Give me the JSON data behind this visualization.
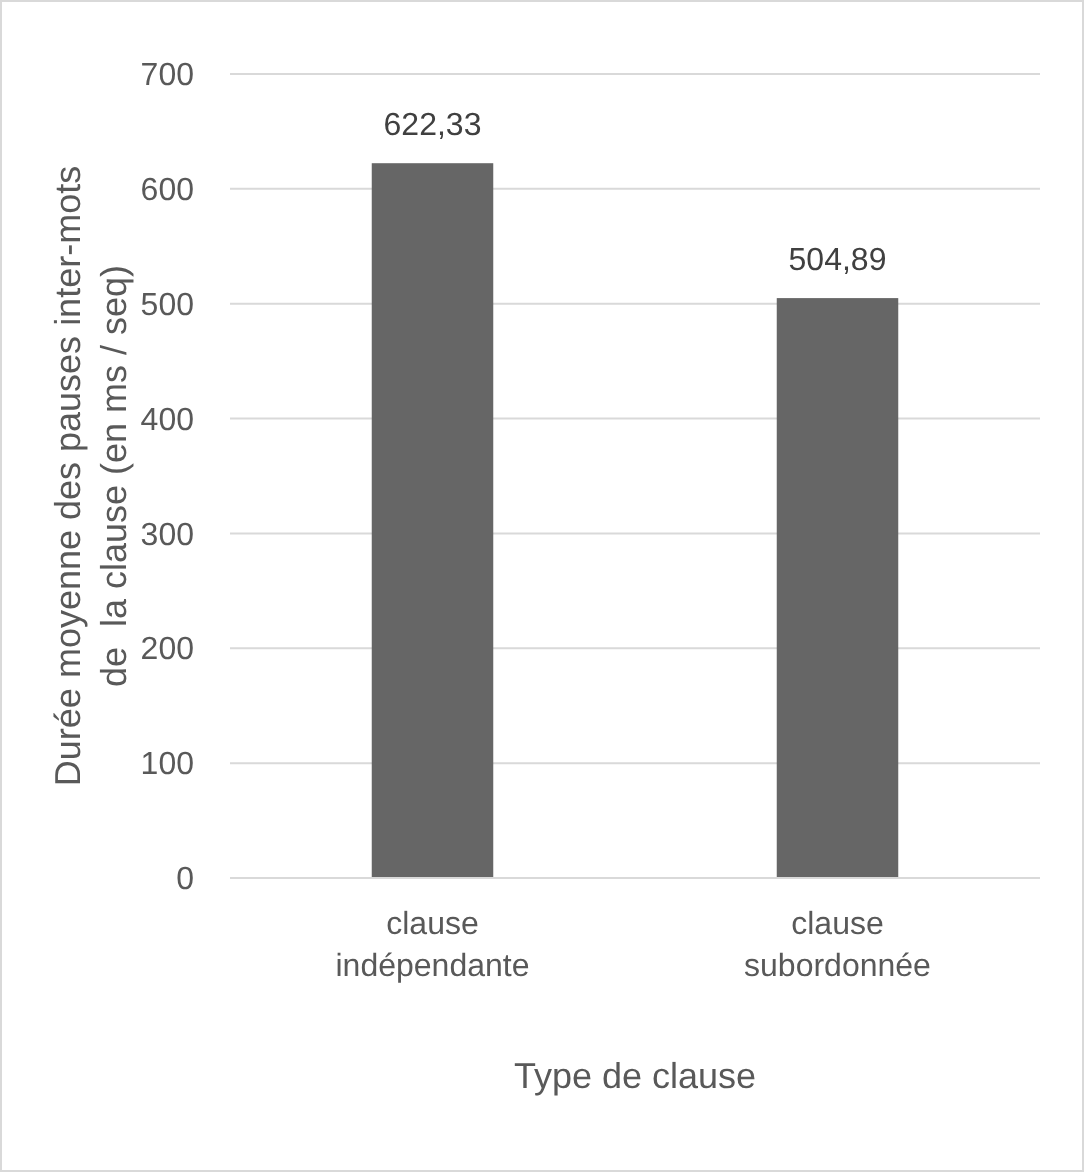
{
  "chart_data": {
    "type": "bar",
    "xlabel": "Type de clause",
    "ylabel": "Durée moyenne des pauses inter-mots de  la clause (en ms / seq)",
    "categories": [
      "clause indépendante",
      "clause subordonnée"
    ],
    "values": [
      622.33,
      504.89
    ],
    "value_labels": [
      "622,33",
      "504,89"
    ],
    "color": "#666666",
    "ylim": [
      0,
      700
    ],
    "yticks": [
      0,
      100,
      200,
      300,
      400,
      500,
      600,
      700
    ],
    "grid": "y"
  }
}
